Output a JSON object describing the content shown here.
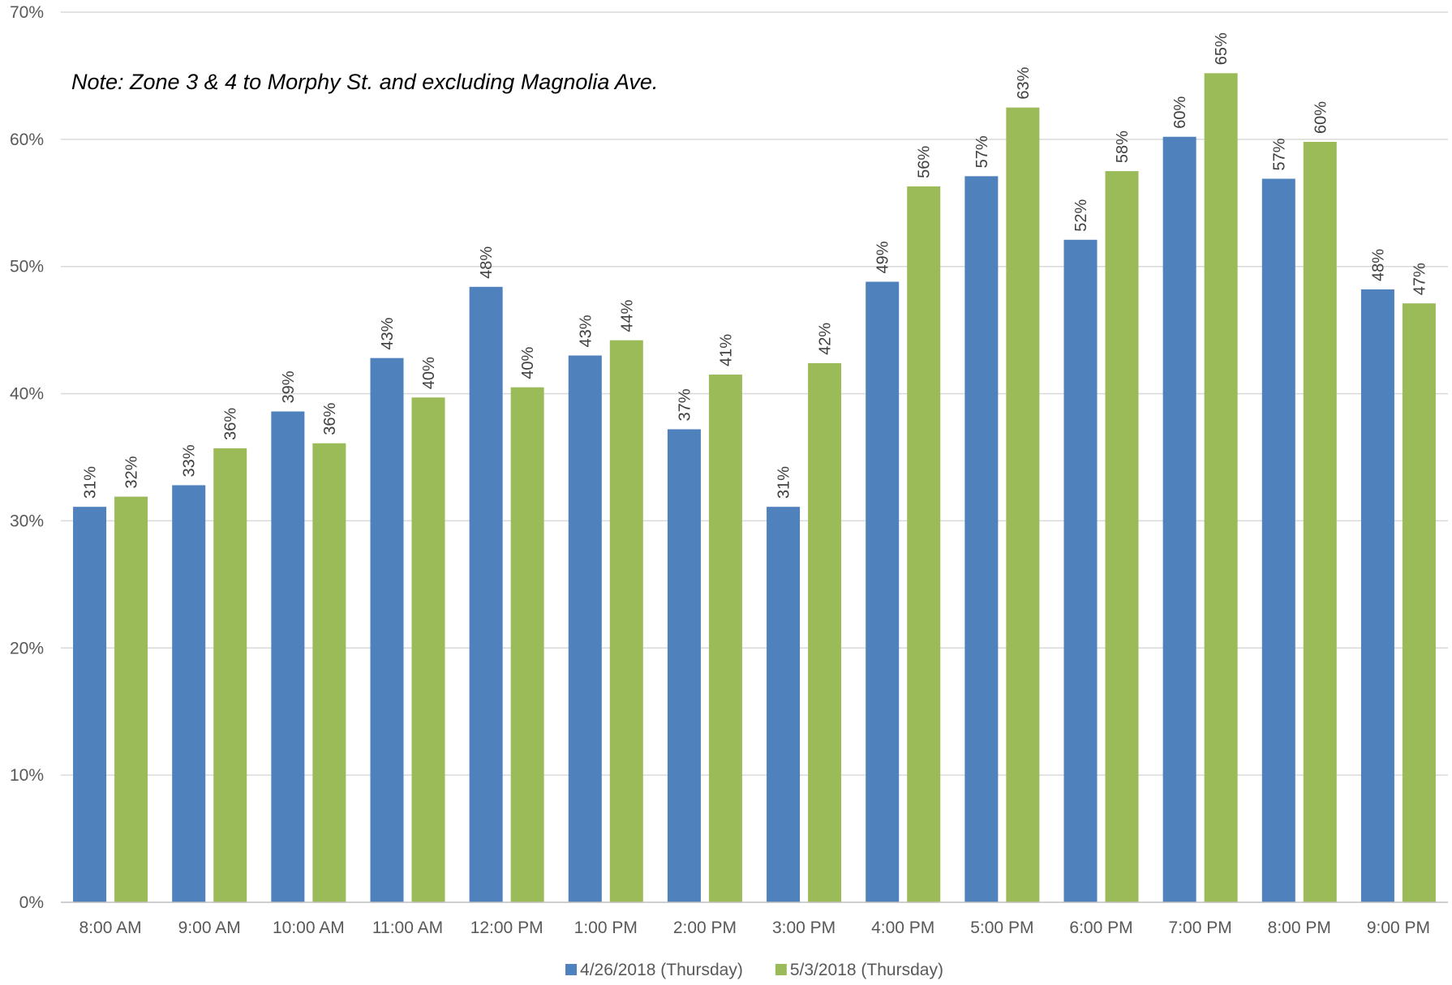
{
  "chart_data": {
    "type": "bar",
    "title": "",
    "annotation": "Note:  Zone 3 & 4 to Morphy St. and excluding Magnolia Ave.",
    "xlabel": "",
    "ylabel": "",
    "ylim": [
      0,
      70
    ],
    "y_ticks": [
      "0%",
      "10%",
      "20%",
      "30%",
      "40%",
      "50%",
      "60%",
      "70%"
    ],
    "y_tick_values": [
      0,
      10,
      20,
      30,
      40,
      50,
      60,
      70
    ],
    "grid": true,
    "legend_position": "bottom",
    "categories": [
      "8:00 AM",
      "9:00 AM",
      "10:00 AM",
      "11:00 AM",
      "12:00 PM",
      "1:00 PM",
      "2:00 PM",
      "3:00 PM",
      "4:00 PM",
      "5:00 PM",
      "6:00 PM",
      "7:00 PM",
      "8:00 PM",
      "9:00 PM"
    ],
    "series": [
      {
        "name": "4/26/2018 (Thursday)",
        "color": "#4F81BD",
        "values": [
          31.1,
          32.8,
          38.6,
          42.8,
          48.4,
          43.0,
          37.2,
          31.1,
          48.8,
          57.1,
          52.1,
          60.2,
          56.9,
          48.2
        ],
        "labels": [
          "31%",
          "33%",
          "39%",
          "43%",
          "48%",
          "43%",
          "37%",
          "31%",
          "49%",
          "57%",
          "52%",
          "60%",
          "57%",
          "48%"
        ]
      },
      {
        "name": "5/3/2018 (Thursday)",
        "color": "#9BBB59",
        "values": [
          31.9,
          35.7,
          36.1,
          39.7,
          40.5,
          44.2,
          41.5,
          42.4,
          56.3,
          62.5,
          57.5,
          65.2,
          59.8,
          47.1
        ],
        "labels": [
          "32%",
          "36%",
          "36%",
          "40%",
          "40%",
          "44%",
          "41%",
          "42%",
          "56%",
          "63%",
          "58%",
          "65%",
          "60%",
          "47%"
        ]
      }
    ]
  }
}
